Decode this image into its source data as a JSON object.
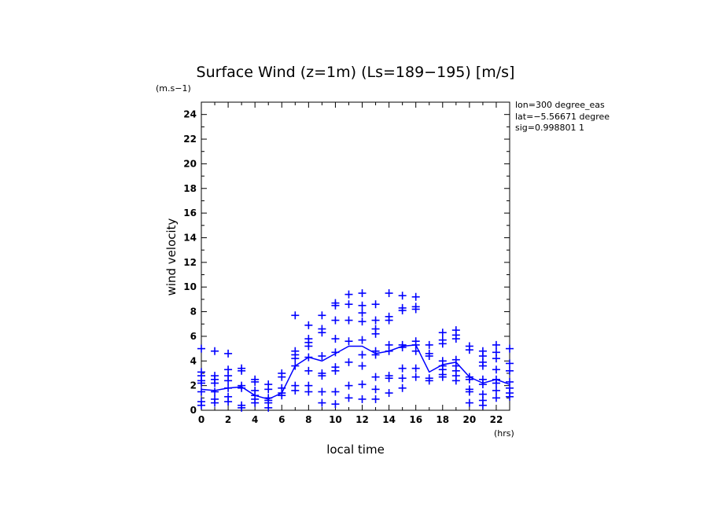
{
  "chart_data": {
    "type": "scatter",
    "title": "Surface Wind (z=1m) (Ls=189−195) [m/s]",
    "yunit": "(m.s−1)",
    "xunit": "(hrs)",
    "xlabel": "local time",
    "ylabel": "wind velocity",
    "xlim": [
      0,
      23
    ],
    "ylim": [
      0,
      25
    ],
    "xticks": [
      "0",
      "2",
      "4",
      "6",
      "8",
      "10",
      "12",
      "14",
      "16",
      "18",
      "20",
      "22"
    ],
    "yticks": [
      "0",
      "2",
      "4",
      "6",
      "8",
      "10",
      "12",
      "14",
      "16",
      "18",
      "20",
      "22",
      "24"
    ],
    "info_lines": [
      "lon=300 degree_eas",
      "lat=−5.56671 degree",
      "sig=0.998801 1"
    ],
    "color": "#0000ff",
    "grid": false,
    "series": [
      {
        "kind": "points",
        "points": [
          [
            0,
            5.0
          ],
          [
            0,
            3.1
          ],
          [
            0,
            2.8
          ],
          [
            0,
            2.4
          ],
          [
            0,
            2.2
          ],
          [
            0,
            1.5
          ],
          [
            0,
            0.7
          ],
          [
            0,
            0.4
          ],
          [
            1,
            4.8
          ],
          [
            1,
            2.8
          ],
          [
            1,
            2.5
          ],
          [
            1,
            2.2
          ],
          [
            1,
            1.5
          ],
          [
            1,
            0.9
          ],
          [
            1,
            0.6
          ],
          [
            2,
            4.6
          ],
          [
            2,
            3.3
          ],
          [
            2,
            2.8
          ],
          [
            2,
            2.4
          ],
          [
            2,
            1.8
          ],
          [
            2,
            1.1
          ],
          [
            2,
            0.7
          ],
          [
            3,
            3.4
          ],
          [
            3,
            3.2
          ],
          [
            3,
            2.0
          ],
          [
            3,
            1.8
          ],
          [
            3,
            0.4
          ],
          [
            3,
            0.2
          ],
          [
            4,
            2.5
          ],
          [
            4,
            2.3
          ],
          [
            4,
            1.6
          ],
          [
            4,
            1.2
          ],
          [
            4,
            0.9
          ],
          [
            4,
            0.6
          ],
          [
            5,
            2.1
          ],
          [
            5,
            1.7
          ],
          [
            5,
            1.0
          ],
          [
            5,
            0.8
          ],
          [
            5,
            0.6
          ],
          [
            5,
            0.2
          ],
          [
            6,
            3.0
          ],
          [
            6,
            2.7
          ],
          [
            6,
            1.8
          ],
          [
            6,
            1.4
          ],
          [
            6,
            1.2
          ],
          [
            7,
            7.7
          ],
          [
            7,
            4.8
          ],
          [
            7,
            4.5
          ],
          [
            7,
            4.2
          ],
          [
            7,
            3.6
          ],
          [
            7,
            2.0
          ],
          [
            7,
            1.6
          ],
          [
            8,
            6.9
          ],
          [
            8,
            5.8
          ],
          [
            8,
            5.5
          ],
          [
            8,
            5.2
          ],
          [
            8,
            4.3
          ],
          [
            8,
            3.2
          ],
          [
            8,
            2.0
          ],
          [
            8,
            1.5
          ],
          [
            9,
            7.7
          ],
          [
            9,
            6.6
          ],
          [
            9,
            6.3
          ],
          [
            9,
            4.4
          ],
          [
            9,
            3.0
          ],
          [
            9,
            2.8
          ],
          [
            9,
            1.5
          ],
          [
            9,
            0.6
          ],
          [
            10,
            8.7
          ],
          [
            10,
            8.5
          ],
          [
            10,
            7.3
          ],
          [
            10,
            5.8
          ],
          [
            10,
            4.7
          ],
          [
            10,
            3.5
          ],
          [
            10,
            3.2
          ],
          [
            10,
            1.5
          ],
          [
            10,
            0.5
          ],
          [
            11,
            9.4
          ],
          [
            11,
            8.6
          ],
          [
            11,
            7.3
          ],
          [
            11,
            5.6
          ],
          [
            11,
            3.9
          ],
          [
            11,
            2.0
          ],
          [
            11,
            1.0
          ],
          [
            12,
            9.5
          ],
          [
            12,
            8.5
          ],
          [
            12,
            7.9
          ],
          [
            12,
            7.2
          ],
          [
            12,
            5.7
          ],
          [
            12,
            4.5
          ],
          [
            12,
            3.6
          ],
          [
            12,
            2.1
          ],
          [
            12,
            0.9
          ],
          [
            13,
            8.6
          ],
          [
            13,
            7.3
          ],
          [
            13,
            6.6
          ],
          [
            13,
            6.2
          ],
          [
            13,
            4.8
          ],
          [
            13,
            4.5
          ],
          [
            13,
            2.7
          ],
          [
            13,
            1.7
          ],
          [
            13,
            0.9
          ],
          [
            14,
            9.5
          ],
          [
            14,
            7.6
          ],
          [
            14,
            7.3
          ],
          [
            14,
            5.3
          ],
          [
            14,
            4.8
          ],
          [
            14,
            2.8
          ],
          [
            14,
            2.6
          ],
          [
            14,
            1.4
          ],
          [
            15,
            9.3
          ],
          [
            15,
            8.3
          ],
          [
            15,
            8.1
          ],
          [
            15,
            5.3
          ],
          [
            15,
            5.1
          ],
          [
            15,
            3.4
          ],
          [
            15,
            2.6
          ],
          [
            15,
            1.8
          ],
          [
            16,
            9.2
          ],
          [
            16,
            8.4
          ],
          [
            16,
            8.2
          ],
          [
            16,
            5.6
          ],
          [
            16,
            5.3
          ],
          [
            16,
            4.8
          ],
          [
            16,
            3.4
          ],
          [
            16,
            2.7
          ],
          [
            17,
            5.3
          ],
          [
            17,
            4.6
          ],
          [
            17,
            4.4
          ],
          [
            17,
            2.6
          ],
          [
            17,
            2.4
          ],
          [
            18,
            6.3
          ],
          [
            18,
            5.7
          ],
          [
            18,
            5.4
          ],
          [
            18,
            4.0
          ],
          [
            18,
            3.6
          ],
          [
            18,
            3.3
          ],
          [
            18,
            2.9
          ],
          [
            18,
            2.7
          ],
          [
            19,
            6.5
          ],
          [
            19,
            6.1
          ],
          [
            19,
            5.8
          ],
          [
            19,
            4.1
          ],
          [
            19,
            3.6
          ],
          [
            19,
            3.2
          ],
          [
            19,
            2.8
          ],
          [
            19,
            2.4
          ],
          [
            20,
            5.2
          ],
          [
            20,
            4.9
          ],
          [
            20,
            2.7
          ],
          [
            20,
            2.5
          ],
          [
            20,
            1.7
          ],
          [
            20,
            1.5
          ],
          [
            20,
            0.6
          ],
          [
            21,
            4.8
          ],
          [
            21,
            4.4
          ],
          [
            21,
            3.9
          ],
          [
            21,
            3.6
          ],
          [
            21,
            2.5
          ],
          [
            21,
            2.1
          ],
          [
            21,
            1.3
          ],
          [
            21,
            0.8
          ],
          [
            21,
            0.4
          ],
          [
            22,
            5.3
          ],
          [
            22,
            4.7
          ],
          [
            22,
            4.2
          ],
          [
            22,
            3.3
          ],
          [
            22,
            2.5
          ],
          [
            22,
            2.2
          ],
          [
            22,
            1.6
          ],
          [
            22,
            1.0
          ],
          [
            23,
            5.0
          ],
          [
            23,
            3.8
          ],
          [
            23,
            3.2
          ],
          [
            23,
            2.3
          ],
          [
            23,
            1.8
          ],
          [
            23,
            1.4
          ],
          [
            23,
            1.1
          ]
        ]
      },
      {
        "kind": "mean_line",
        "x": [
          0,
          1,
          2,
          3,
          4,
          5,
          6,
          7,
          8,
          9,
          10,
          11,
          12,
          13,
          14,
          15,
          16,
          17,
          18,
          19,
          20,
          21,
          22,
          23
        ],
        "y": [
          1.7,
          1.6,
          1.8,
          1.9,
          1.2,
          0.9,
          1.4,
          3.6,
          4.3,
          4.0,
          4.6,
          5.2,
          5.2,
          4.6,
          4.8,
          5.2,
          5.3,
          3.1,
          3.7,
          3.9,
          2.7,
          2.2,
          2.5,
          2.1
        ]
      }
    ]
  }
}
